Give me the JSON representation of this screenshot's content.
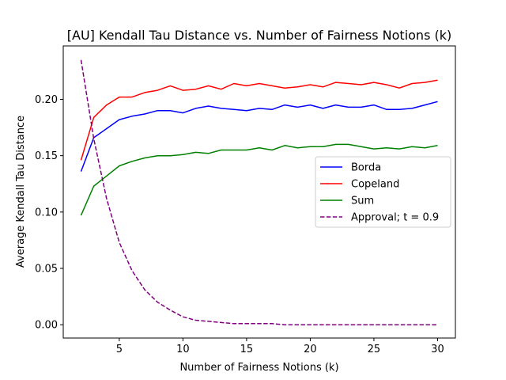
{
  "chart_data": {
    "type": "line",
    "title": "[AU] Kendall Tau Distance vs. Number of Fairness Notions (k)",
    "xlabel": "Number of Fairness Notions (k)",
    "ylabel": "Average Kendall Tau Distance",
    "xlim": [
      0.6,
      31.4
    ],
    "ylim": [
      -0.0118,
      0.2474
    ],
    "x_ticks": [
      5,
      10,
      15,
      20,
      25,
      30
    ],
    "x_tick_labels": [
      "5",
      "10",
      "15",
      "20",
      "25",
      "30"
    ],
    "y_ticks": [
      0.0,
      0.05,
      0.1,
      0.15,
      0.2
    ],
    "y_tick_labels": [
      "0.00",
      "0.05",
      "0.10",
      "0.15",
      "0.20"
    ],
    "grid": false,
    "legend_placement": "center-right",
    "x": [
      2,
      3,
      4,
      5,
      6,
      7,
      8,
      9,
      10,
      11,
      12,
      13,
      14,
      15,
      16,
      17,
      18,
      19,
      20,
      21,
      22,
      23,
      24,
      25,
      26,
      27,
      28,
      29,
      30
    ],
    "series": [
      {
        "name": "Borda",
        "color": "#0000ff",
        "style": "solid",
        "values": [
          0.136,
          0.166,
          0.174,
          0.182,
          0.185,
          0.187,
          0.19,
          0.19,
          0.188,
          0.192,
          0.194,
          0.192,
          0.191,
          0.19,
          0.192,
          0.191,
          0.195,
          0.193,
          0.195,
          0.192,
          0.195,
          0.193,
          0.193,
          0.195,
          0.191,
          0.191,
          0.192,
          0.195,
          0.198
        ]
      },
      {
        "name": "Copeland",
        "color": "#ff0000",
        "style": "solid",
        "values": [
          0.146,
          0.184,
          0.195,
          0.202,
          0.202,
          0.206,
          0.208,
          0.212,
          0.208,
          0.209,
          0.212,
          0.209,
          0.214,
          0.212,
          0.214,
          0.212,
          0.21,
          0.211,
          0.213,
          0.211,
          0.215,
          0.214,
          0.213,
          0.215,
          0.213,
          0.21,
          0.214,
          0.215,
          0.217
        ]
      },
      {
        "name": "Sum",
        "color": "#008000",
        "style": "solid",
        "values": [
          0.097,
          0.123,
          0.132,
          0.141,
          0.145,
          0.148,
          0.15,
          0.15,
          0.151,
          0.153,
          0.152,
          0.155,
          0.155,
          0.155,
          0.157,
          0.155,
          0.159,
          0.157,
          0.158,
          0.158,
          0.16,
          0.16,
          0.158,
          0.156,
          0.157,
          0.156,
          0.158,
          0.157,
          0.159
        ]
      },
      {
        "name": "Approval; t = 0.9",
        "color": "#800080",
        "style": "dashed",
        "values": [
          0.235,
          0.165,
          0.112,
          0.073,
          0.048,
          0.031,
          0.02,
          0.013,
          0.007,
          0.004,
          0.003,
          0.002,
          0.001,
          0.001,
          0.001,
          0.001,
          0.0,
          0.0,
          0.0,
          0.0,
          0.0,
          0.0,
          0.0,
          0.0,
          0.0,
          0.0,
          0.0,
          0.0,
          0.0
        ]
      }
    ]
  }
}
